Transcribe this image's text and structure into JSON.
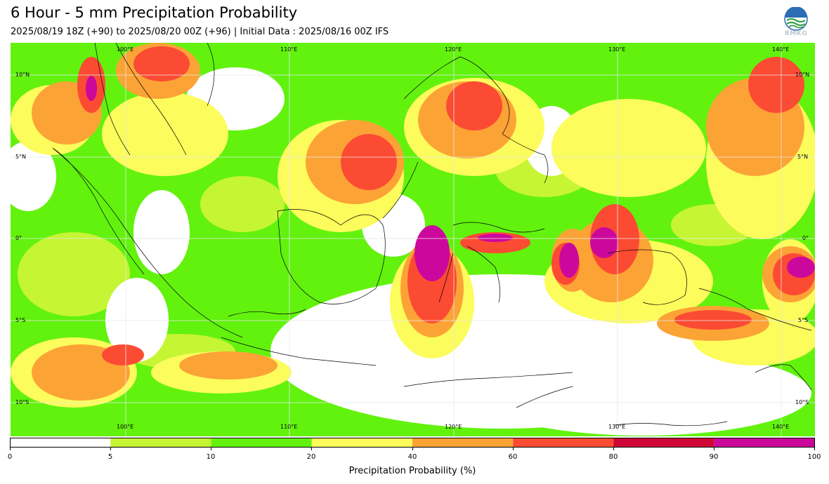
{
  "header": {
    "title": "6 Hour - 5 mm Precipitation Probability",
    "subtitle": "2025/08/19 18Z (+90) to 2025/08/20 00Z (+96) | Initial Data : 2025/08/16 00Z IFS",
    "logo_text": "BMKG"
  },
  "map": {
    "lon_labels": [
      "100°E",
      "110°E",
      "120°E",
      "130°E",
      "140°E"
    ],
    "lat_labels": [
      "10°N",
      "5°N",
      "0°",
      "5°S",
      "10°S"
    ]
  },
  "colorbar": {
    "label": "Precipitation Probability (%)",
    "ticks": [
      "0",
      "5",
      "10",
      "20",
      "40",
      "60",
      "80",
      "90",
      "100"
    ],
    "colors": [
      "#ffffff",
      "#c6f534",
      "#62f20e",
      "#fcfc5c",
      "#fca336",
      "#fc4b33",
      "#d00736",
      "#cc089c"
    ]
  }
}
